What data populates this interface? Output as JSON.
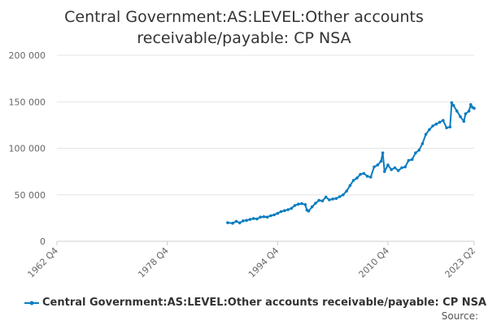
{
  "title_line1": "Central Government:AS:LEVEL:Other accounts",
  "title_line2": "receivable/payable: CP NSA",
  "source_label": "Source:",
  "colors": {
    "series": "#0b7dc1",
    "grid": "#e6e6e6",
    "axis_text": "#666666"
  },
  "chart_data": {
    "type": "line",
    "title": "Central Government:AS:LEVEL:Other accounts receivable/payable: CP NSA",
    "xlabel": "",
    "ylabel": "",
    "x_tick_labels": [
      "1962 Q4",
      "1978 Q4",
      "1994 Q4",
      "2010 Q4",
      "2023 Q2"
    ],
    "y_tick_labels": [
      "0",
      "50 000",
      "100 000",
      "150 000",
      "200 000"
    ],
    "ylim": [
      0,
      200000
    ],
    "grid": true,
    "legend_position": "bottom",
    "series": [
      {
        "name": "Central Government:AS:LEVEL:Other accounts receivable/payable: CP NSA",
        "points": [
          [
            "1987 Q3",
            20000
          ],
          [
            "1988 Q2",
            19500
          ],
          [
            "1988 Q4",
            21500
          ],
          [
            "1989 Q2",
            19800
          ],
          [
            "1989 Q4",
            22000
          ],
          [
            "1990 Q2",
            22500
          ],
          [
            "1990 Q4",
            23500
          ],
          [
            "1991 Q2",
            24500
          ],
          [
            "1991 Q4",
            24000
          ],
          [
            "1992 Q2",
            26000
          ],
          [
            "1992 Q4",
            26500
          ],
          [
            "1993 Q2",
            26000
          ],
          [
            "1993 Q4",
            27500
          ],
          [
            "1994 Q2",
            28500
          ],
          [
            "1994 Q4",
            30000
          ],
          [
            "1995 Q2",
            32000
          ],
          [
            "1995 Q4",
            33000
          ],
          [
            "1996 Q2",
            34000
          ],
          [
            "1996 Q4",
            35500
          ],
          [
            "1997 Q2",
            38500
          ],
          [
            "1997 Q4",
            40000
          ],
          [
            "1998 Q2",
            40500
          ],
          [
            "1998 Q4",
            39500
          ],
          [
            "1999 Q1",
            33500
          ],
          [
            "1999 Q2",
            32500
          ],
          [
            "1999 Q4",
            37000
          ],
          [
            "2000 Q2",
            41000
          ],
          [
            "2000 Q4",
            44000
          ],
          [
            "2001 Q2",
            43500
          ],
          [
            "2001 Q4",
            47500
          ],
          [
            "2002 Q2",
            44500
          ],
          [
            "2002 Q4",
            45500
          ],
          [
            "2003 Q2",
            46000
          ],
          [
            "2003 Q4",
            48000
          ],
          [
            "2004 Q2",
            50000
          ],
          [
            "2004 Q4",
            54000
          ],
          [
            "2005 Q2",
            60000
          ],
          [
            "2005 Q4",
            65500
          ],
          [
            "2006 Q2",
            68000
          ],
          [
            "2006 Q4",
            72000
          ],
          [
            "2007 Q2",
            73000
          ],
          [
            "2007 Q4",
            70000
          ],
          [
            "2008 Q2",
            69000
          ],
          [
            "2008 Q4",
            80000
          ],
          [
            "2009 Q2",
            82000
          ],
          [
            "2009 Q4",
            86000
          ],
          [
            "2010 Q1",
            95000
          ],
          [
            "2010 Q2",
            75000
          ],
          [
            "2010 Q4",
            82000
          ],
          [
            "2011 Q2",
            77000
          ],
          [
            "2011 Q4",
            79000
          ],
          [
            "2012 Q2",
            76000
          ],
          [
            "2012 Q4",
            79000
          ],
          [
            "2013 Q2",
            80000
          ],
          [
            "2013 Q4",
            87000
          ],
          [
            "2014 Q2",
            88000
          ],
          [
            "2014 Q4",
            95000
          ],
          [
            "2015 Q2",
            98000
          ],
          [
            "2015 Q4",
            105000
          ],
          [
            "2016 Q2",
            115000
          ],
          [
            "2016 Q4",
            120000
          ],
          [
            "2017 Q2",
            124000
          ],
          [
            "2017 Q4",
            126000
          ],
          [
            "2018 Q2",
            128000
          ],
          [
            "2018 Q4",
            130000
          ],
          [
            "2019 Q2",
            122000
          ],
          [
            "2019 Q4",
            123000
          ],
          [
            "2020 Q1",
            149000
          ],
          [
            "2020 Q2",
            146000
          ],
          [
            "2020 Q4",
            140000
          ],
          [
            "2021 Q2",
            134000
          ],
          [
            "2021 Q4",
            129000
          ],
          [
            "2022 Q1",
            137000
          ],
          [
            "2022 Q3",
            140000
          ],
          [
            "2022 Q4",
            147000
          ],
          [
            "2023 Q1",
            144000
          ],
          [
            "2023 Q2",
            143000
          ]
        ]
      }
    ]
  }
}
